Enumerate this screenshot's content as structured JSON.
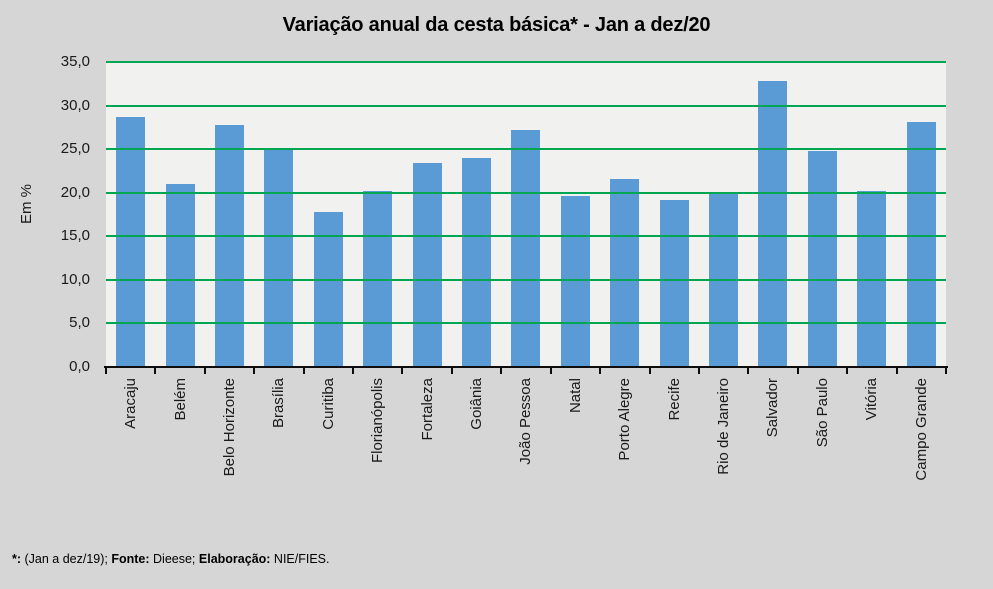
{
  "footer": {
    "segments": [
      {
        "text": "*:",
        "bold": true
      },
      {
        "text": " (Jan a dez/19); ",
        "bold": false
      },
      {
        "text": "Fonte:",
        "bold": true
      },
      {
        "text": " Dieese; ",
        "bold": false
      },
      {
        "text": "Elaboração:",
        "bold": true
      },
      {
        "text": " NIE/FIES.",
        "bold": false
      }
    ]
  },
  "colors": {
    "bar": "#5b9bd5",
    "gridline": "#00a651",
    "plot_bg": "#f1f1f0",
    "page_bg": "#d6d6d6",
    "axis": "#0d0d0d",
    "text": "#1a1a1a"
  },
  "chart_data": {
    "type": "bar",
    "title": "Variação anual da cesta básica* - Jan a dez/20",
    "xlabel": "",
    "ylabel": "Em %",
    "ylim": [
      0,
      35
    ],
    "grid": "horizontal-green",
    "legend": "none",
    "yticks": {
      "values": [
        35,
        30,
        25,
        20,
        15,
        10,
        5,
        0
      ],
      "labels": [
        "35,0",
        "30,0",
        "25,0",
        "20,0",
        "15,0",
        "10,0",
        "5,0",
        "0,0"
      ]
    },
    "categories": [
      "Aracaju",
      "Belém",
      "Belo Horizonte",
      "Brasília",
      "Curitiba",
      "Florianópolis",
      "Fortaleza",
      "Goiânia",
      "João Pessoa",
      "Natal",
      "Porto Alegre",
      "Recife",
      "Rio de Janeiro",
      "Salvador",
      "São Paulo",
      "Vitória",
      "Campo Grande"
    ],
    "values": [
      28.7,
      21.0,
      27.8,
      25.0,
      17.8,
      20.2,
      23.4,
      24.0,
      27.2,
      19.6,
      21.6,
      19.2,
      20.0,
      32.8,
      24.8,
      20.2,
      28.1
    ]
  }
}
